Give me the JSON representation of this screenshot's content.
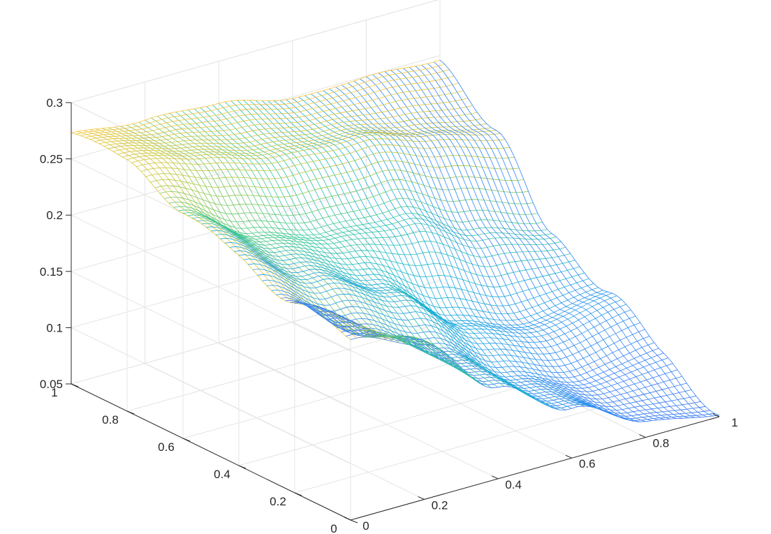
{
  "chart_data": {
    "type": "surface",
    "subtype": "mesh",
    "colormap": "parula",
    "grid": true,
    "axes": {
      "x": {
        "label": "",
        "ticks": [
          0,
          0.2,
          0.4,
          0.6,
          0.8,
          1
        ],
        "tick_labels": [
          "0",
          "0.2",
          "0.4",
          "0.6",
          "0.8",
          "1"
        ],
        "range": [
          0,
          1
        ]
      },
      "y": {
        "label": "",
        "ticks": [
          0,
          0.2,
          0.4,
          0.6,
          0.8,
          1
        ],
        "tick_labels": [
          "0",
          "0.2",
          "0.4",
          "0.6",
          "0.8",
          "1"
        ],
        "range": [
          0,
          1
        ]
      },
      "z": {
        "label": "",
        "ticks": [
          0.05,
          0.1,
          0.15,
          0.2,
          0.25,
          0.3
        ],
        "tick_labels": [
          "0.05",
          "0.1",
          "0.15",
          "0.2",
          "0.25",
          "0.3"
        ],
        "range": [
          0.05,
          0.3
        ]
      }
    },
    "x": [
      0,
      0.2,
      0.4,
      0.6,
      0.8,
      1
    ],
    "y": [
      0,
      0.2,
      0.4,
      0.6,
      0.8,
      1
    ],
    "z": [
      [
        0.205,
        0.185,
        0.133,
        0.088,
        0.057,
        0.055
      ],
      [
        0.222,
        0.175,
        0.14,
        0.1,
        0.078,
        0.08
      ],
      [
        0.24,
        0.195,
        0.16,
        0.12,
        0.105,
        0.11
      ],
      [
        0.25,
        0.215,
        0.2,
        0.19,
        0.155,
        0.14
      ],
      [
        0.265,
        0.255,
        0.245,
        0.235,
        0.22,
        0.215
      ],
      [
        0.28,
        0.27,
        0.262,
        0.25,
        0.25,
        0.24
      ]
    ]
  }
}
